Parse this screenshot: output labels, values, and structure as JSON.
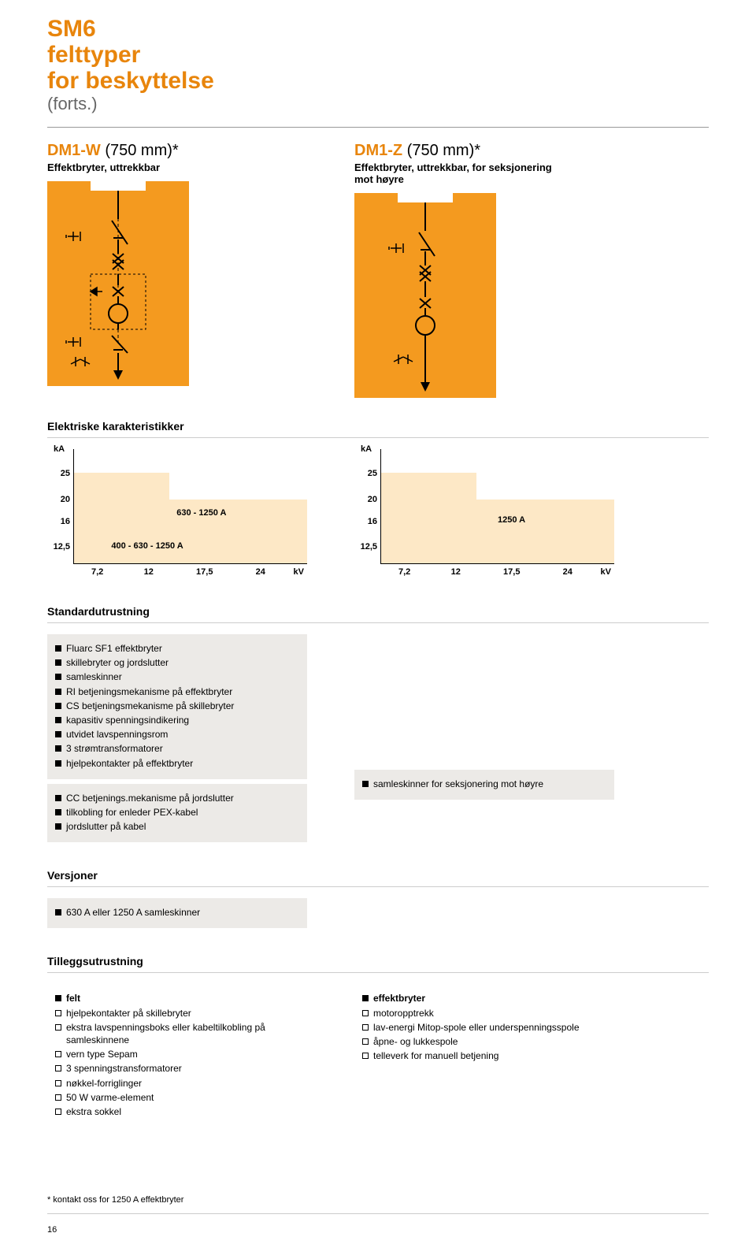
{
  "header": {
    "line1": "SM6",
    "line2": "felttyper",
    "line3": "for beskyttelse",
    "cont": "(forts.)"
  },
  "products": [
    {
      "code": "DM1-W",
      "spec": " (750 mm)*",
      "subtitle": "Effektbryter, uttrekkbar"
    },
    {
      "code": "DM1-Z",
      "spec": " (750 mm)*",
      "subtitle": "Effektbryter, uttrekkbar, for seksjonering mot høyre"
    }
  ],
  "electrical": {
    "heading": "Elektriske karakteristikker",
    "unit_y": "kA",
    "unit_x": "kV",
    "yticks": [
      "25",
      "20",
      "16",
      "12,5"
    ],
    "xticks": [
      "7,2",
      "12",
      "17,5",
      "24"
    ],
    "charts": [
      {
        "labels": [
          "630 - 1250 A",
          "400 - 630 - 1250 A"
        ]
      },
      {
        "labels": [
          "1250 A"
        ]
      }
    ],
    "colors": {
      "region": "#fde8c6",
      "accent": "#f49a1f"
    }
  },
  "std": {
    "heading": "Standardutrustning",
    "items_main": [
      "Fluarc SF1 effektbryter",
      "skillebryter og jordslutter",
      "samleskinner",
      "RI betjeningsmekanisme på effektbryter",
      "CS betjeningsmekanisme på skillebryter",
      "kapasitiv spenningsindikering",
      "utvidet lavspenningsrom",
      "3 strømtransformatorer",
      "hjelpekontakter på effektbryter"
    ],
    "items_sub": [
      "CC betjenings.mekanisme på jordslutter",
      "tilkobling for enleder PEX-kabel",
      "jordslutter på kabel"
    ],
    "items_right": [
      "samleskinner for seksjonering mot høyre"
    ]
  },
  "versions": {
    "heading": "Versjoner",
    "items": [
      "630 A eller 1250 A samleskinner"
    ]
  },
  "extra": {
    "heading": "Tilleggsutrustning",
    "left": {
      "head": "felt",
      "items": [
        "hjelpekontakter på skillebryter",
        "ekstra lavspenningsboks eller kabeltilkobling på samleskinnene",
        "vern type Sepam",
        "3 spenningstransformatorer",
        "nøkkel-forriglinger",
        "50 W varme-element",
        "ekstra sokkel"
      ]
    },
    "right": {
      "head": "effektbryter",
      "items": [
        "motoropptrekk",
        "lav-energi Mitop-spole eller underspenningsspole",
        "åpne- og lukkespole",
        "telleverk for manuell betjening"
      ]
    }
  },
  "footnote": "* kontakt oss for 1250 A effektbryter",
  "page_num": "16"
}
